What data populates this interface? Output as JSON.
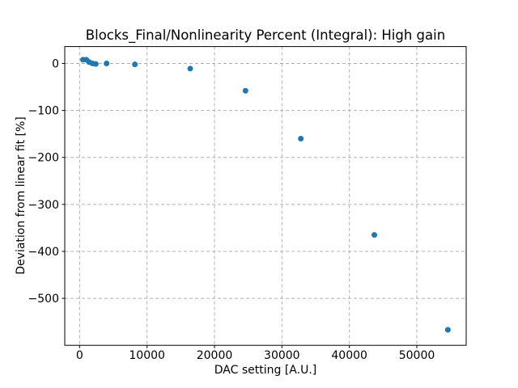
{
  "chart_data": {
    "type": "scatter",
    "title": "Blocks_Final/Nonlinearity Percent (Integral): High gain",
    "xlabel": "DAC setting [A.U.]",
    "ylabel": "Deviation from linear fit [%]",
    "points": [
      {
        "x": 500,
        "y": 8
      },
      {
        "x": 1000,
        "y": 8
      },
      {
        "x": 1400,
        "y": 3
      },
      {
        "x": 1900,
        "y": 0
      },
      {
        "x": 2400,
        "y": -1
      },
      {
        "x": 4000,
        "y": 0
      },
      {
        "x": 8200,
        "y": -2
      },
      {
        "x": 16400,
        "y": -11
      },
      {
        "x": 24600,
        "y": -58
      },
      {
        "x": 32800,
        "y": -160
      },
      {
        "x": 43700,
        "y": -365
      },
      {
        "x": 54600,
        "y": -567
      }
    ],
    "xlim": [
      -2200,
      57320
    ],
    "ylim": [
      -600,
      36
    ],
    "xticks": [
      0,
      10000,
      20000,
      30000,
      40000,
      50000
    ],
    "yticks": [
      0,
      -100,
      -200,
      -300,
      -400,
      -500
    ],
    "xtick_labels": [
      "0",
      "10000",
      "20000",
      "30000",
      "40000",
      "50000"
    ],
    "ytick_labels": [
      "0",
      "−100",
      "−200",
      "−300",
      "−400",
      "−500"
    ],
    "grid": true,
    "grid_style": "dashed",
    "legend": "none",
    "colors": {
      "marker": "#1f77b4",
      "grid": "#b0b0b0",
      "spine": "#000000",
      "background": "#ffffff"
    },
    "marker_diameter_px": 7
  }
}
